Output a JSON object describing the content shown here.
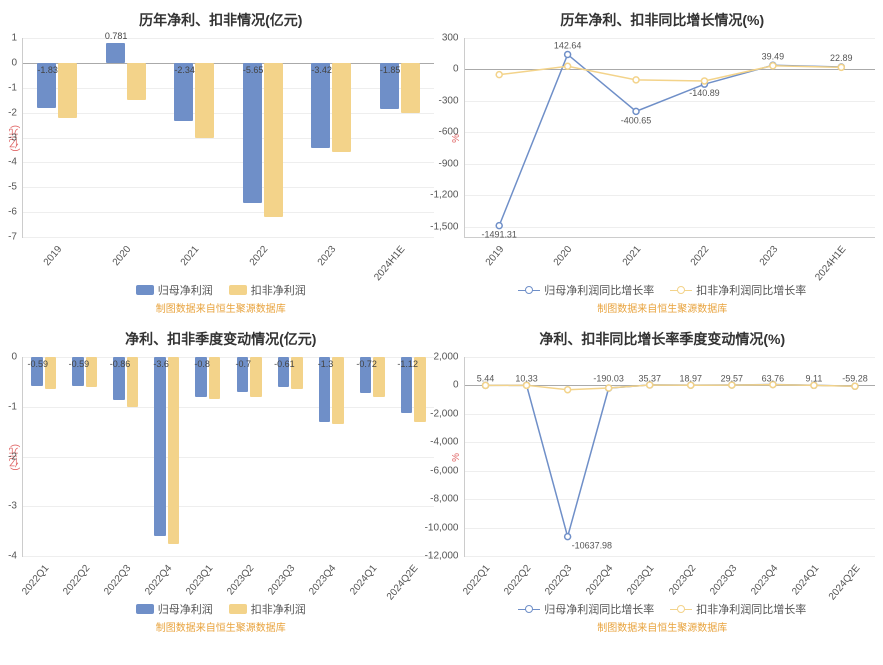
{
  "source_text": "制图数据来自恒生聚源数据库",
  "colors": {
    "series1": "#6f8fc8",
    "series2": "#f3d38a",
    "grid": "#eeeeee",
    "axis": "#cccccc",
    "ylab": "#e06666",
    "source": "#e8a33d"
  },
  "charts": [
    {
      "id": "c1",
      "type": "bar",
      "title": "历年净利、扣非情况(亿元)",
      "ylabel": "(亿元)",
      "ylim": [
        -7,
        1
      ],
      "ytick_step": 1,
      "categories": [
        "2019",
        "2020",
        "2021",
        "2022",
        "2023",
        "2024H1E"
      ],
      "series": [
        {
          "name": "归母净利润",
          "color": "#6f8fc8",
          "values": [
            -1.83,
            0.781,
            -2.34,
            -5.65,
            -3.42,
            -1.85
          ]
        },
        {
          "name": "扣非净利润",
          "color": "#f3d38a",
          "values": [
            -2.2,
            -1.5,
            -3.0,
            -6.2,
            -3.6,
            -2.0
          ]
        }
      ],
      "labels": [
        -1.83,
        0.781,
        -2.34,
        -5.65,
        -3.42,
        -1.85
      ]
    },
    {
      "id": "c2",
      "type": "line",
      "title": "历年净利、扣非同比增长情况(%)",
      "ylabel": "%",
      "ylim": [
        -1600,
        300
      ],
      "ytick_step": 300,
      "yticks": [
        300,
        0,
        -300,
        -600,
        -900,
        -1200,
        -1500
      ],
      "categories": [
        "2019",
        "2020",
        "2021",
        "2022",
        "2023",
        "2024H1E"
      ],
      "series": [
        {
          "name": "归母净利润同比增长率",
          "color": "#6f8fc8",
          "values": [
            -1491.31,
            142.64,
            -400.65,
            -140.89,
            39.49,
            22.89
          ]
        },
        {
          "name": "扣非净利润同比增长率",
          "color": "#f3d38a",
          "values": [
            -50,
            30,
            -100,
            -110,
            35,
            20
          ]
        }
      ],
      "labels": [
        -1491.31,
        142.64,
        -400.65,
        -140.89,
        39.49,
        22.89
      ],
      "label_side": [
        "below",
        "above",
        "below",
        "below",
        "above",
        "above"
      ]
    },
    {
      "id": "c3",
      "type": "bar",
      "title": "净利、扣非季度变动情况(亿元)",
      "ylabel": "(亿元)",
      "ylim": [
        -4,
        0
      ],
      "ytick_step": 1,
      "categories": [
        "2022Q1",
        "2022Q2",
        "2022Q3",
        "2022Q4",
        "2023Q1",
        "2023Q2",
        "2023Q3",
        "2023Q4",
        "2024Q1",
        "2024Q2E"
      ],
      "series": [
        {
          "name": "归母净利润",
          "color": "#6f8fc8",
          "values": [
            -0.59,
            -0.59,
            -0.86,
            -3.6,
            -0.8,
            -0.7,
            -0.61,
            -1.3,
            -0.72,
            -1.12
          ]
        },
        {
          "name": "扣非净利润",
          "color": "#f3d38a",
          "values": [
            -0.65,
            -0.6,
            -1.0,
            -3.75,
            -0.85,
            -0.8,
            -0.65,
            -1.35,
            -0.8,
            -1.3
          ]
        }
      ],
      "labels": [
        -0.59,
        -0.59,
        -0.86,
        -3.6,
        -0.8,
        -0.7,
        -0.61,
        -1.3,
        -0.72,
        -1.12
      ]
    },
    {
      "id": "c4",
      "type": "line",
      "title": "净利、扣非同比增长率季度变动情况(%)",
      "ylabel": "%",
      "ylim": [
        -12000,
        2000
      ],
      "ytick_step": 2000,
      "yticks": [
        2000,
        0,
        -2000,
        -4000,
        -6000,
        -8000,
        -10000,
        -12000
      ],
      "categories": [
        "2022Q1",
        "2022Q2",
        "2022Q3",
        "2022Q4",
        "2023Q1",
        "2023Q2",
        "2023Q3",
        "2023Q4",
        "2024Q1",
        "2024Q2E"
      ],
      "series": [
        {
          "name": "归母净利润同比增长率",
          "color": "#6f8fc8",
          "values": [
            5.44,
            10.33,
            -10637.98,
            -190.03,
            35.37,
            18.97,
            29.57,
            63.76,
            9.11,
            -59.28
          ]
        },
        {
          "name": "扣非净利润同比增长率",
          "color": "#f3d38a",
          "values": [
            0,
            8,
            -300,
            -180,
            30,
            15,
            25,
            60,
            8,
            -55
          ]
        }
      ],
      "labels": [
        5.44,
        10.33,
        -190.03,
        35.37,
        18.97,
        29.57,
        63.76,
        9.11,
        -59.28
      ],
      "dip_label": {
        "index": 2,
        "value": -10637.98
      }
    }
  ]
}
